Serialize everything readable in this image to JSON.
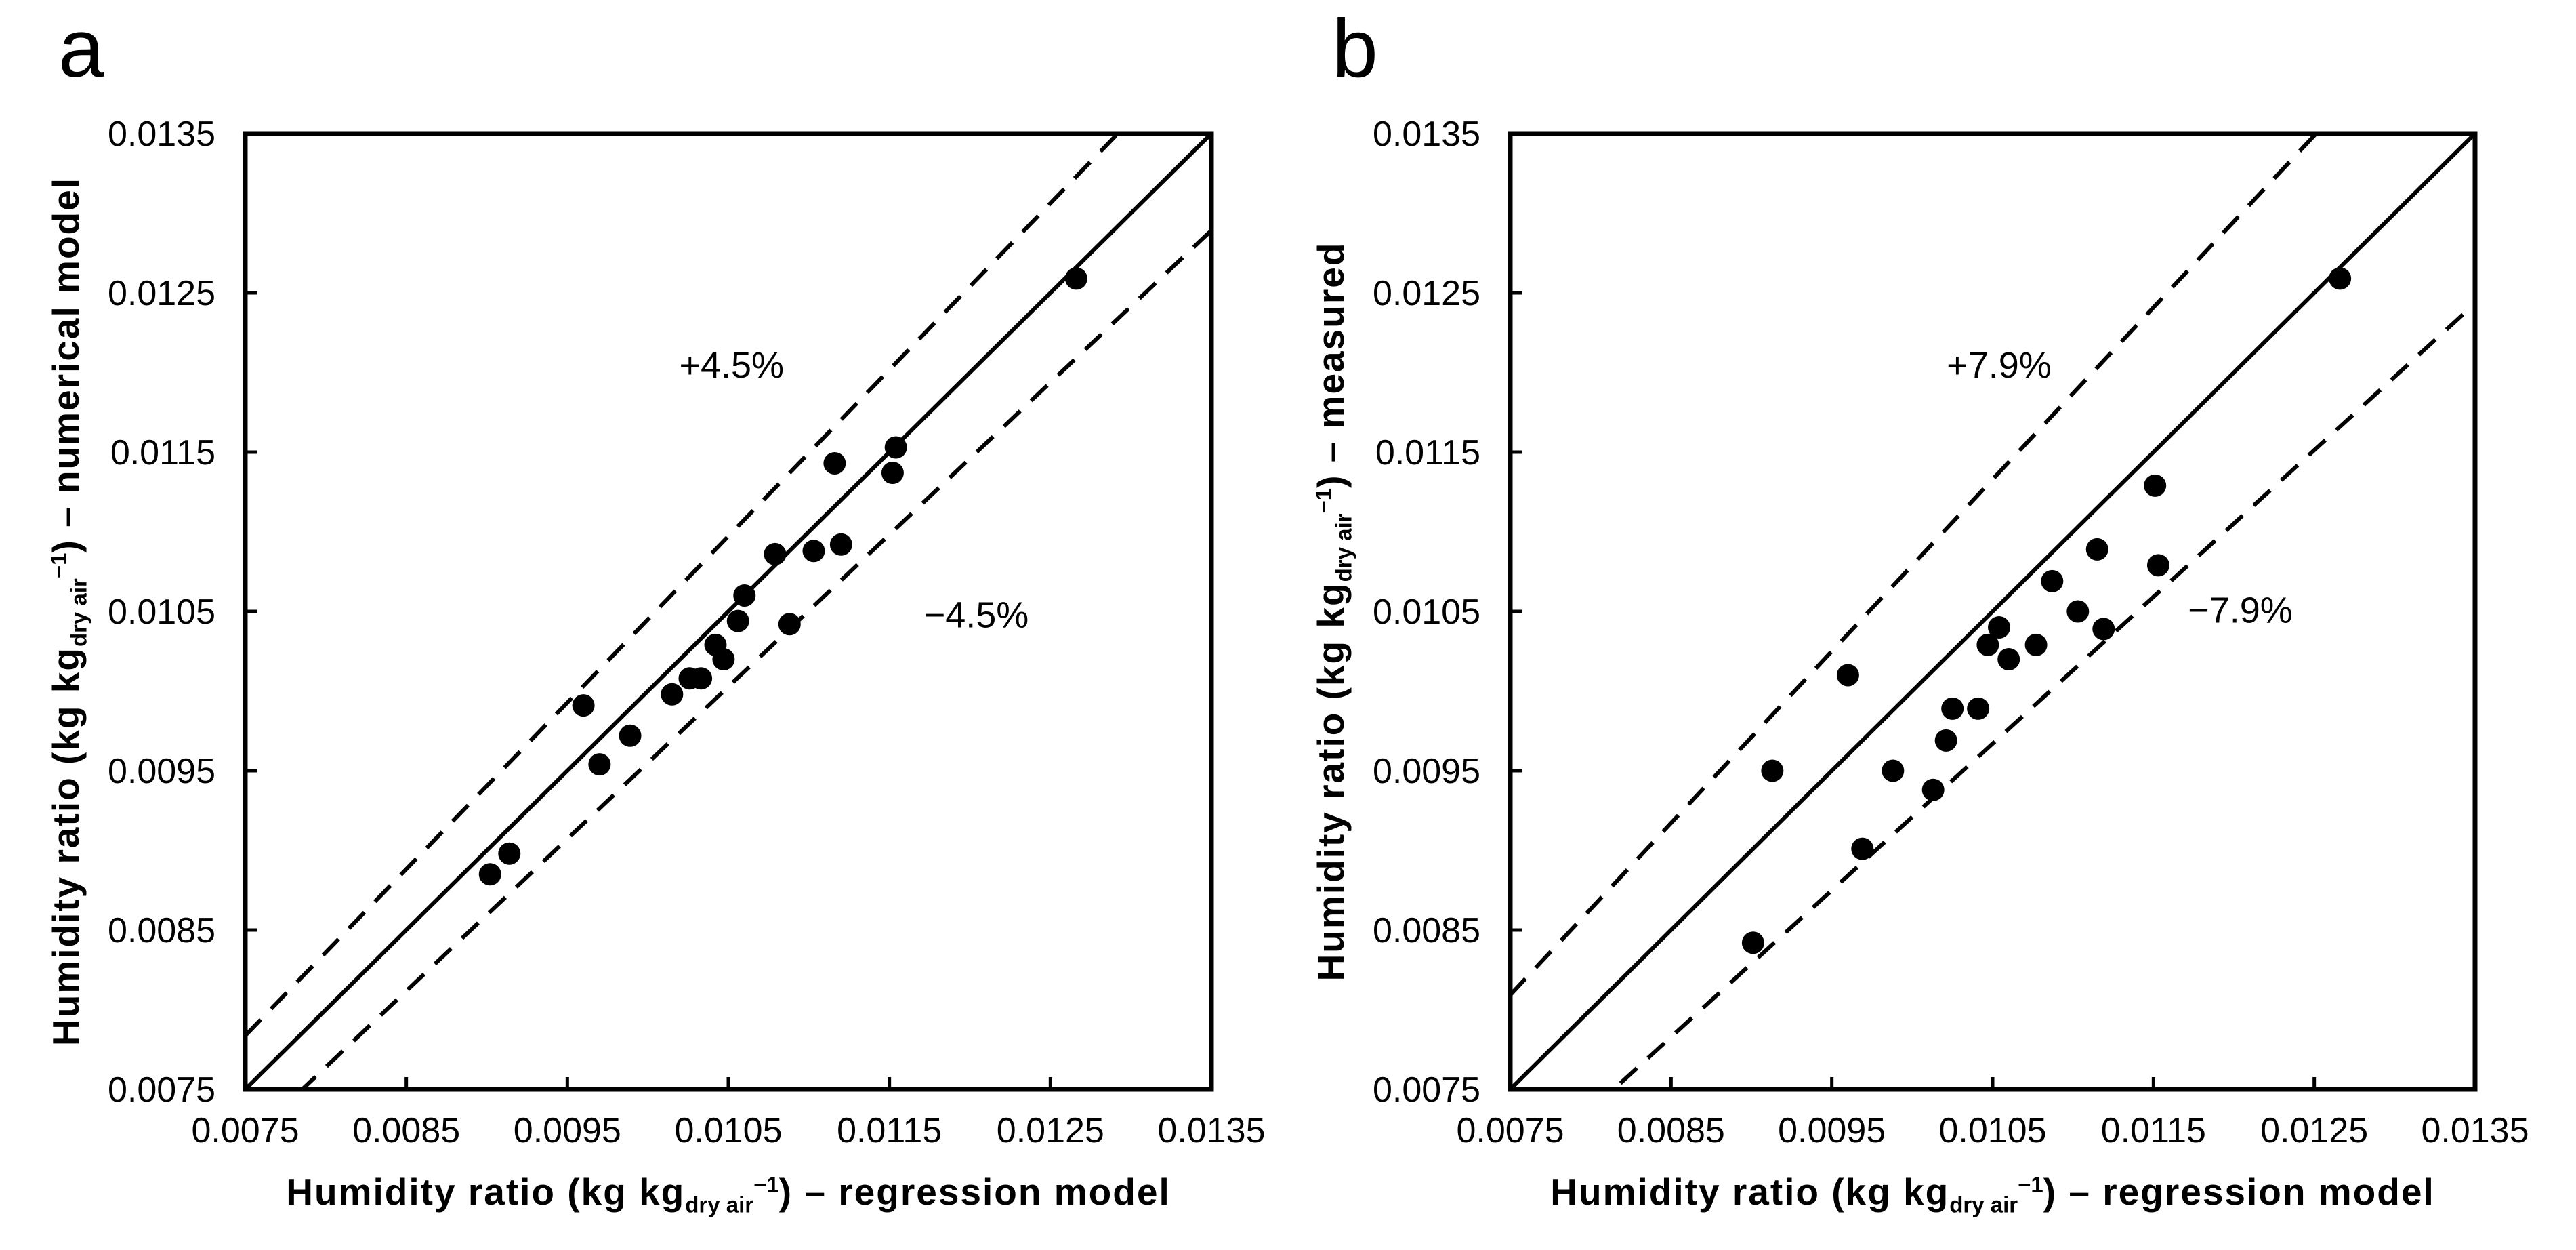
{
  "figure": {
    "background": "#ffffff",
    "ink": "#000000"
  },
  "panels": [
    {
      "letter": "a",
      "y_title": {
        "prefix": "Humidity ratio (kg kg",
        "sub": "dry air",
        "sup": "−1",
        "suffix": ") – numerical model"
      },
      "x_title": {
        "prefix": "Humidity ratio (kg kg",
        "sub": "dry air",
        "sup": "−1",
        "suffix": ") – regression model"
      }
    },
    {
      "letter": "b",
      "y_title": {
        "prefix": "Humidity ratio (kg kg",
        "sub": "dry air",
        "sup": "−1",
        "suffix": ") – measured"
      },
      "x_title": {
        "prefix": "Humidity ratio (kg kg",
        "sub": "dry air",
        "sup": "−1",
        "suffix": ") – regression model"
      }
    }
  ],
  "chart_data": [
    {
      "type": "scatter",
      "panel": "a",
      "xlabel": "Humidity ratio (kg kg dry air −1) – regression model",
      "ylabel": "Humidity ratio (kg kg dry air −1) – numerical model",
      "xlim": [
        0.0075,
        0.0135
      ],
      "ylim": [
        0.0075,
        0.0135
      ],
      "ticks": [
        0.0075,
        0.0085,
        0.0095,
        0.0105,
        0.0115,
        0.0125,
        0.0135
      ],
      "tick_labels": [
        "0.0075",
        "0.0085",
        "0.0095",
        "0.0105",
        "0.0115",
        "0.0125",
        "0.0135"
      ],
      "grid": false,
      "legend": "none",
      "identity_line": true,
      "error_band_pct": 4.5,
      "annotations": [
        {
          "text": "+4.5%",
          "x": 0.01052,
          "y": 0.01205
        },
        {
          "text": "−4.5%",
          "x": 0.01204,
          "y": 0.01048
        }
      ],
      "points": [
        [
          0.01266,
          0.01259
        ],
        [
          0.01154,
          0.01153
        ],
        [
          0.01116,
          0.01143
        ],
        [
          0.01152,
          0.01137
        ],
        [
          0.0112,
          0.01092
        ],
        [
          0.01103,
          0.01088
        ],
        [
          0.01079,
          0.01086
        ],
        [
          0.0106,
          0.0106
        ],
        [
          0.01056,
          0.01044
        ],
        [
          0.01088,
          0.01042
        ],
        [
          0.01042,
          0.01029
        ],
        [
          0.01047,
          0.0102
        ],
        [
          0.01026,
          0.01008
        ],
        [
          0.01033,
          0.01008
        ],
        [
          0.01015,
          0.00998
        ],
        [
          0.0096,
          0.00991
        ],
        [
          0.00989,
          0.00972
        ],
        [
          0.0097,
          0.00954
        ],
        [
          0.00914,
          0.00898
        ],
        [
          0.00902,
          0.00885
        ]
      ]
    },
    {
      "type": "scatter",
      "panel": "b",
      "xlabel": "Humidity ratio (kg kg dry air −1) – regression model",
      "ylabel": "Humidity ratio (kg kg dry air −1) – measured",
      "xlim": [
        0.0075,
        0.0135
      ],
      "ylim": [
        0.0075,
        0.0135
      ],
      "ticks": [
        0.0075,
        0.0085,
        0.0095,
        0.0105,
        0.0115,
        0.0125,
        0.0135
      ],
      "tick_labels": [
        "0.0075",
        "0.0085",
        "0.0095",
        "0.0105",
        "0.0115",
        "0.0125",
        "0.0135"
      ],
      "grid": false,
      "legend": "none",
      "identity_line": true,
      "error_band_pct": 7.9,
      "annotations": [
        {
          "text": "+7.9%",
          "x": 0.01054,
          "y": 0.01205
        },
        {
          "text": "−7.9%",
          "x": 0.01204,
          "y": 0.01051
        }
      ],
      "points": [
        [
          0.01266,
          0.01259
        ],
        [
          0.01151,
          0.01129
        ],
        [
          0.01115,
          0.01089
        ],
        [
          0.01153,
          0.01079
        ],
        [
          0.01087,
          0.01069
        ],
        [
          0.01103,
          0.0105
        ],
        [
          0.01119,
          0.01039
        ],
        [
          0.01054,
          0.0104
        ],
        [
          0.01047,
          0.01029
        ],
        [
          0.01077,
          0.01029
        ],
        [
          0.0106,
          0.0102
        ],
        [
          0.0096,
          0.0101
        ],
        [
          0.01025,
          0.00989
        ],
        [
          0.01041,
          0.00989
        ],
        [
          0.01021,
          0.00969
        ],
        [
          0.00913,
          0.0095
        ],
        [
          0.00988,
          0.0095
        ],
        [
          0.01013,
          0.00938
        ],
        [
          0.00969,
          0.00901
        ],
        [
          0.00901,
          0.00842
        ]
      ]
    }
  ]
}
